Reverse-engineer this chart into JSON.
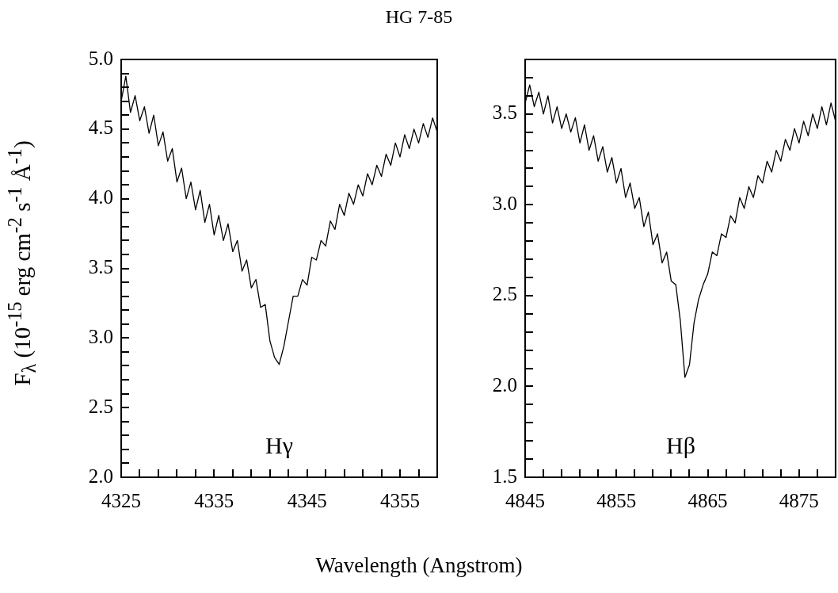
{
  "chart_data": [
    {
      "type": "line",
      "title": "HG 7-85",
      "xlabel": "Wavelength (Angstrom)",
      "ylabel": "F$_{λ}$ (10$^{-15}$ erg cm$^{-2}$ s$^{-1}$ Å$^{-1}$)",
      "x": [
        4325,
        4325.5,
        4326,
        4326.5,
        4327,
        4327.5,
        4328,
        4328.5,
        4329,
        4329.5,
        4330,
        4330.5,
        4331,
        4331.5,
        4332,
        4332.5,
        4333,
        4333.5,
        4334,
        4334.5,
        4335,
        4335.5,
        4336,
        4336.5,
        4337,
        4337.5,
        4338,
        4338.5,
        4339,
        4339.5,
        4340,
        4340.5,
        4341,
        4341.5,
        4342,
        4342.5,
        4343,
        4343.5,
        4344,
        4344.5,
        4345,
        4345.5,
        4346,
        4346.5,
        4347,
        4347.5,
        4348,
        4348.5,
        4349,
        4349.5,
        4350,
        4350.5,
        4351,
        4351.5,
        4352,
        4352.5,
        4353,
        4353.5,
        4354,
        4354.5,
        4355,
        4355.5,
        4356,
        4356.5,
        4357,
        4357.5,
        4358,
        4358.5,
        4359
      ],
      "series": [
        {
          "color": "#000000",
          "values": [
            4.7,
            4.88,
            4.62,
            4.74,
            4.56,
            4.66,
            4.47,
            4.6,
            4.38,
            4.48,
            4.27,
            4.36,
            4.12,
            4.22,
            4.0,
            4.12,
            3.92,
            4.06,
            3.83,
            3.96,
            3.74,
            3.88,
            3.7,
            3.82,
            3.62,
            3.7,
            3.48,
            3.56,
            3.36,
            3.42,
            3.22,
            3.24,
            2.98,
            2.86,
            2.81,
            2.94,
            3.12,
            3.3,
            3.3,
            3.42,
            3.38,
            3.58,
            3.56,
            3.7,
            3.66,
            3.84,
            3.78,
            3.96,
            3.88,
            4.04,
            3.96,
            4.1,
            4.02,
            4.18,
            4.1,
            4.24,
            4.16,
            4.32,
            4.24,
            4.4,
            4.3,
            4.46,
            4.36,
            4.5,
            4.4,
            4.54,
            4.44,
            4.58,
            4.48
          ]
        }
      ],
      "xlim": [
        4325,
        4359
      ],
      "xticks": [
        4325,
        {
          "value": 4327,
          "label": null
        },
        {
          "value": 4329,
          "label": null
        },
        {
          "value": 4331,
          "label": null
        },
        {
          "value": 4333,
          "label": null
        },
        4335,
        {
          "value": 4337,
          "label": null
        },
        {
          "value": 4339,
          "label": null
        },
        {
          "value": 4341,
          "label": null
        },
        {
          "value": 4343,
          "label": null
        },
        4345,
        {
          "value": 4347,
          "label": null
        },
        {
          "value": 4349,
          "label": null
        },
        {
          "value": 4351,
          "label": null
        },
        {
          "value": 4353,
          "label": null
        },
        4355,
        {
          "value": 4357,
          "label": null
        }
      ],
      "ylim": [
        2,
        5
      ],
      "yticks": [
        {
          "value": 2,
          "label": "2.0"
        },
        {
          "value": 2.1,
          "label": null
        },
        {
          "value": 2.2,
          "label": null
        },
        {
          "value": 2.3,
          "label": null
        },
        {
          "value": 2.4,
          "label": null
        },
        2.5,
        {
          "value": 2.6,
          "label": null
        },
        {
          "value": 2.7,
          "label": null
        },
        {
          "value": 2.8,
          "label": null
        },
        {
          "value": 2.9,
          "label": null
        },
        {
          "value": 3,
          "label": "3.0"
        },
        {
          "value": 3.1,
          "label": null
        },
        {
          "value": 3.2,
          "label": null
        },
        {
          "value": 3.3,
          "label": null
        },
        {
          "value": 3.4,
          "label": null
        },
        3.5,
        {
          "value": 3.6,
          "label": null
        },
        {
          "value": 3.7,
          "label": null
        },
        {
          "value": 3.8,
          "label": null
        },
        {
          "value": 3.9,
          "label": null
        },
        {
          "value": 4,
          "label": "4.0"
        },
        {
          "value": 4.1,
          "label": null
        },
        {
          "value": 4.2,
          "label": null
        },
        {
          "value": 4.3,
          "label": null
        },
        {
          "value": 4.4,
          "label": null
        },
        4.5,
        {
          "value": 4.6,
          "label": null
        },
        {
          "value": 4.7,
          "label": null
        },
        {
          "value": 4.8,
          "label": null
        },
        {
          "value": 4.9,
          "label": null
        },
        {
          "value": 5,
          "label": "5.0"
        }
      ],
      "annotations": [
        "Hγ"
      ]
    },
    {
      "type": "line",
      "x": [
        4845,
        4845.5,
        4846,
        4846.5,
        4847,
        4847.5,
        4848,
        4848.5,
        4849,
        4849.5,
        4850,
        4850.5,
        4851,
        4851.5,
        4852,
        4852.5,
        4853,
        4853.5,
        4854,
        4854.5,
        4855,
        4855.5,
        4856,
        4856.5,
        4857,
        4857.5,
        4858,
        4858.5,
        4859,
        4859.5,
        4860,
        4860.5,
        4861,
        4861.5,
        4862,
        4862.5,
        4863,
        4863.5,
        4864,
        4864.5,
        4865,
        4865.5,
        4866,
        4866.5,
        4867,
        4867.5,
        4868,
        4868.5,
        4869,
        4869.5,
        4870,
        4870.5,
        4871,
        4871.5,
        4872,
        4872.5,
        4873,
        4873.5,
        4874,
        4874.5,
        4875,
        4875.5,
        4876,
        4876.5,
        4877,
        4877.5,
        4878,
        4878.5,
        4879
      ],
      "series": [
        {
          "color": "#000000",
          "values": [
            3.56,
            3.66,
            3.54,
            3.62,
            3.5,
            3.6,
            3.45,
            3.54,
            3.42,
            3.5,
            3.4,
            3.48,
            3.34,
            3.44,
            3.3,
            3.38,
            3.24,
            3.32,
            3.18,
            3.26,
            3.12,
            3.2,
            3.04,
            3.12,
            2.98,
            3.04,
            2.88,
            2.96,
            2.78,
            2.84,
            2.68,
            2.74,
            2.58,
            2.56,
            2.36,
            2.05,
            2.12,
            2.35,
            2.48,
            2.56,
            2.62,
            2.74,
            2.72,
            2.84,
            2.82,
            2.94,
            2.9,
            3.04,
            2.98,
            3.1,
            3.04,
            3.16,
            3.12,
            3.24,
            3.18,
            3.3,
            3.24,
            3.36,
            3.3,
            3.42,
            3.34,
            3.46,
            3.38,
            3.5,
            3.42,
            3.54,
            3.44,
            3.56,
            3.46
          ]
        }
      ],
      "xlim": [
        4845,
        4879
      ],
      "xticks": [
        4845,
        {
          "value": 4847,
          "label": null
        },
        {
          "value": 4849,
          "label": null
        },
        {
          "value": 4851,
          "label": null
        },
        {
          "value": 4853,
          "label": null
        },
        4855,
        {
          "value": 4857,
          "label": null
        },
        {
          "value": 4859,
          "label": null
        },
        {
          "value": 4861,
          "label": null
        },
        {
          "value": 4863,
          "label": null
        },
        4865,
        {
          "value": 4867,
          "label": null
        },
        {
          "value": 4869,
          "label": null
        },
        {
          "value": 4871,
          "label": null
        },
        {
          "value": 4873,
          "label": null
        },
        4875,
        {
          "value": 4877,
          "label": null
        }
      ],
      "ylim": [
        1.5,
        3.8
      ],
      "yticks": [
        1.5,
        {
          "value": 1.6,
          "label": null
        },
        {
          "value": 1.7,
          "label": null
        },
        {
          "value": 1.8,
          "label": null
        },
        {
          "value": 1.9,
          "label": null
        },
        {
          "value": 2,
          "label": "2.0"
        },
        {
          "value": 2.1,
          "label": null
        },
        {
          "value": 2.2,
          "label": null
        },
        {
          "value": 2.3,
          "label": null
        },
        {
          "value": 2.4,
          "label": null
        },
        2.5,
        {
          "value": 2.6,
          "label": null
        },
        {
          "value": 2.7,
          "label": null
        },
        {
          "value": 2.8,
          "label": null
        },
        {
          "value": 2.9,
          "label": null
        },
        {
          "value": 3,
          "label": "3.0"
        },
        {
          "value": 3.1,
          "label": null
        },
        {
          "value": 3.2,
          "label": null
        },
        {
          "value": 3.3,
          "label": null
        },
        {
          "value": 3.4,
          "label": null
        },
        3.5,
        {
          "value": 3.6,
          "label": null
        },
        {
          "value": 3.7,
          "label": null
        }
      ],
      "annotations": [
        "Hβ"
      ]
    }
  ]
}
